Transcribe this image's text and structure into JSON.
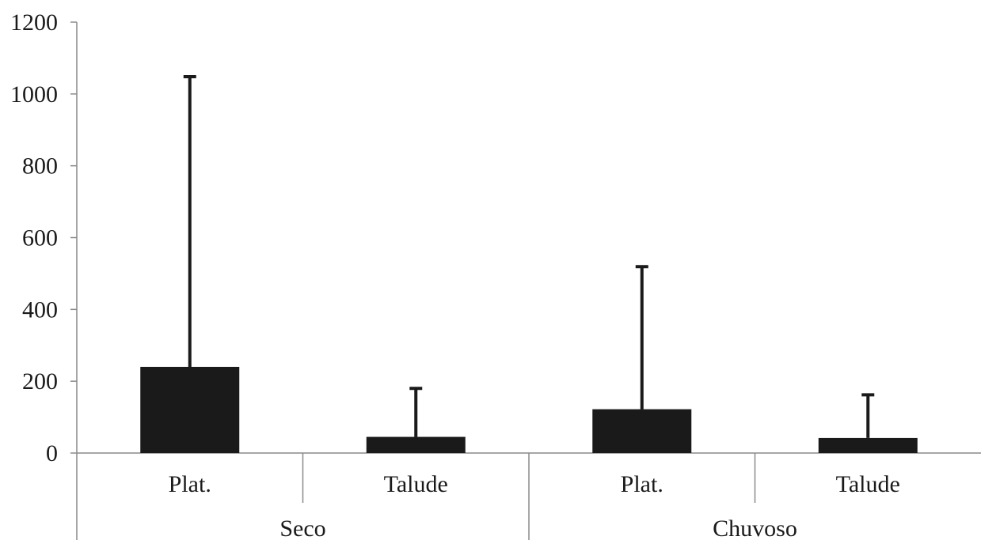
{
  "chart_data": {
    "type": "bar",
    "groups": [
      {
        "label": "Seco",
        "categories": [
          "Plat.",
          "Talude"
        ]
      },
      {
        "label": "Chuvoso",
        "categories": [
          "Plat.",
          "Talude"
        ]
      }
    ],
    "categories": [
      "Plat.",
      "Talude",
      "Plat.",
      "Talude"
    ],
    "values": [
      240,
      45,
      122,
      42
    ],
    "error_upper": [
      1048,
      180,
      519,
      162
    ],
    "ylim": [
      0,
      1200
    ],
    "yticks": [
      0,
      200,
      400,
      600,
      800,
      1000,
      1200
    ],
    "title": "",
    "xlabel": "",
    "ylabel": "",
    "grid": false,
    "bar_color": "#1a1a1a",
    "axis_color": "#8a8a8a"
  }
}
